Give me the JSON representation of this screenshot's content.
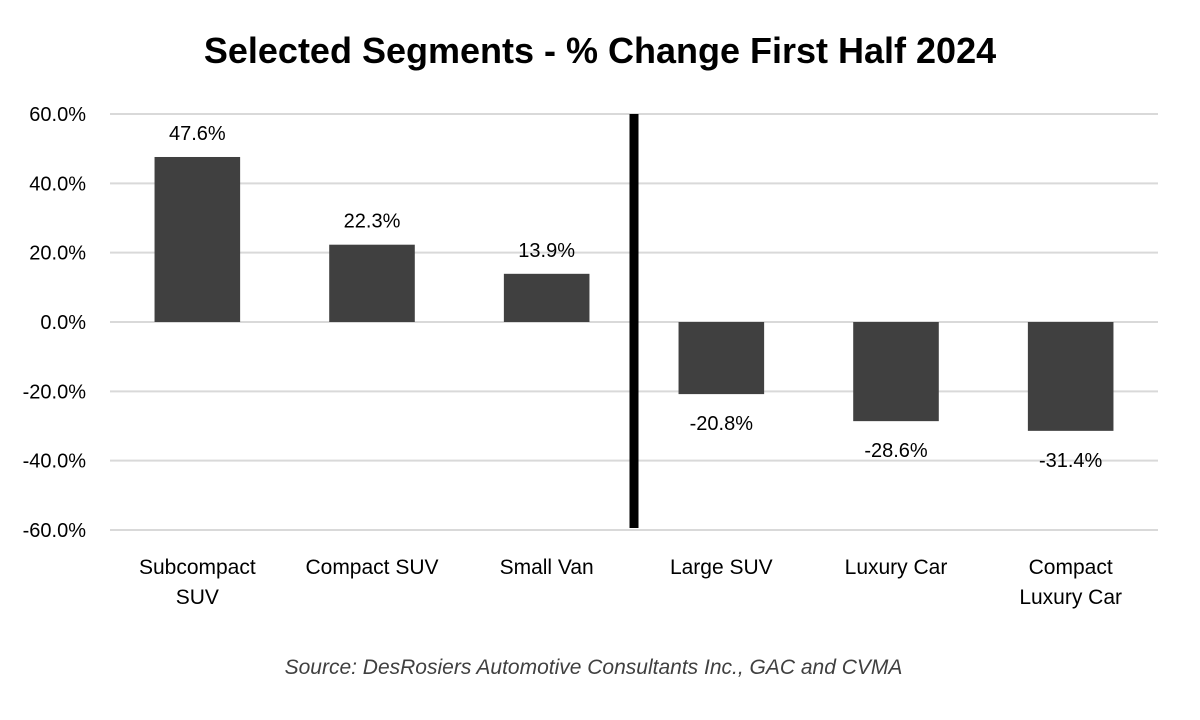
{
  "chart_data": {
    "type": "bar",
    "title": "Selected Segments - % Change First Half 2024",
    "categories": [
      [
        "Subcompact",
        "SUV"
      ],
      [
        "Compact SUV"
      ],
      [
        "Small Van"
      ],
      [
        "Large SUV"
      ],
      [
        "Luxury Car"
      ],
      [
        "Compact",
        "Luxury Car"
      ]
    ],
    "values": [
      47.6,
      22.3,
      13.9,
      -20.8,
      -28.6,
      -31.4
    ],
    "data_labels": [
      "47.6%",
      "22.3%",
      "13.9%",
      "-20.8%",
      "-28.6%",
      "-31.4%"
    ],
    "ylim": [
      -60,
      60
    ],
    "yticks": [
      60,
      40,
      20,
      0,
      -20,
      -40,
      -60
    ],
    "ytick_labels": [
      "60.0%",
      "40.0%",
      "20.0%",
      "0.0%",
      "-20.0%",
      "-40.0%",
      "-60.0%"
    ],
    "xlabel": "",
    "ylabel": "",
    "grid": true,
    "bar_color": "#404040",
    "grid_color": "#d9d9d9",
    "divider_color": "#000000",
    "source": "Source: DesRosiers Automotive Consultants Inc., GAC and CVMA"
  }
}
